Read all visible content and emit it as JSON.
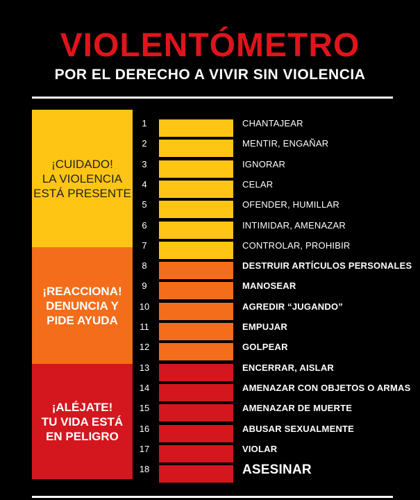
{
  "header": {
    "title": "VIOLENTÓMETRO",
    "subtitle": "POR EL DERECHO A VIVIR SIN VIOLENCIA"
  },
  "colors": {
    "title_red": "#e0141b",
    "yellow": "#ffc515",
    "orange": "#f36d1a",
    "red": "#d4161e",
    "background": "#000000"
  },
  "zones": [
    {
      "text": "¡CUIDADO!\nLA VIOLENCIA\nESTÁ PRESENTE",
      "color": "#ffc515",
      "text_color": "#222222",
      "bold": false
    },
    {
      "text": "¡REACCIONA!\nDENUNCIA Y\nPIDE AYUDA",
      "color": "#f36d1a",
      "text_color": "#ffffff",
      "bold": true
    },
    {
      "text": "¡ALÉJATE!\nTU VIDA ESTÁ\nEN PELIGRO",
      "color": "#d4161e",
      "text_color": "#ffffff",
      "bold": true
    }
  ],
  "levels": [
    {
      "number": "1",
      "label": "CHANTAJEAR"
    },
    {
      "number": "2",
      "label": "MENTIR, ENGAÑAR"
    },
    {
      "number": "3",
      "label": "IGNORAR"
    },
    {
      "number": "4",
      "label": "CELAR"
    },
    {
      "number": "5",
      "label": "OFENDER, HUMILLAR"
    },
    {
      "number": "6",
      "label": "INTIMIDAR, AMENAZAR"
    },
    {
      "number": "7",
      "label": "CONTROLAR, PROHIBIR"
    },
    {
      "number": "8",
      "label": "DESTRUIR ARTÍCULOS PERSONALES"
    },
    {
      "number": "9",
      "label": "MANOSEAR"
    },
    {
      "number": "10",
      "label": "AGREDIR “JUGANDO”"
    },
    {
      "number": "11",
      "label": "EMPUJAR"
    },
    {
      "number": "12",
      "label": "GOLPEAR"
    },
    {
      "number": "13",
      "label": "ENCERRAR, AISLAR"
    },
    {
      "number": "14",
      "label": "AMENAZAR CON OBJETOS O ARMAS"
    },
    {
      "number": "15",
      "label": "AMENAZAR DE MUERTE"
    },
    {
      "number": "16",
      "label": "ABUSAR SEXUALMENTE"
    },
    {
      "number": "17",
      "label": "VIOLAR"
    },
    {
      "number": "18",
      "label": "ASESINAR"
    }
  ]
}
